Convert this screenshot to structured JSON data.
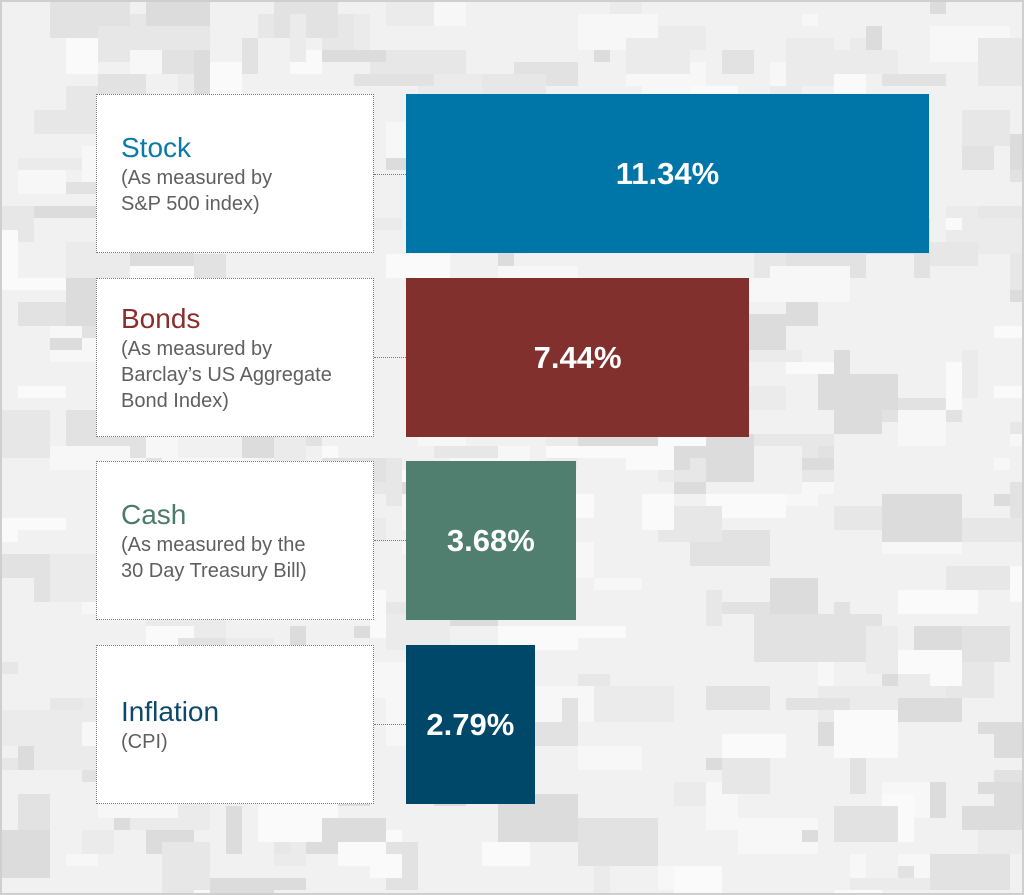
{
  "chart_data": {
    "type": "bar",
    "orientation": "horizontal",
    "categories": [
      "Stock",
      "Bonds",
      "Cash",
      "Inflation"
    ],
    "descriptions": [
      "(As measured by\nS&P 500 index)",
      "(As measured by\nBarclay’s US Aggregate\nBond Index)",
      "(As measured by the\n30 Day Treasury Bill)",
      "(CPI)"
    ],
    "values": [
      11.34,
      7.44,
      3.68,
      2.79
    ],
    "value_labels": [
      "11.34%",
      "7.44%",
      "3.68%",
      "2.79%"
    ],
    "unit": "%",
    "colors": [
      "#0075a8",
      "#82302d",
      "#507e6f",
      "#00486a"
    ],
    "title_colors": [
      "#0b7aa8",
      "#8a2e2b",
      "#4c7a6b",
      "#0d4a6a"
    ],
    "grid": false
  }
}
